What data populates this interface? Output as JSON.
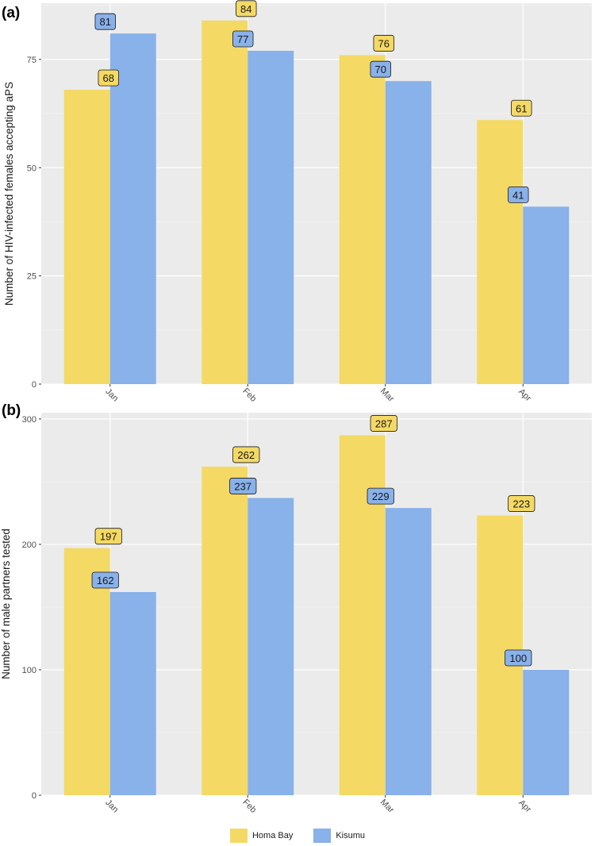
{
  "chart_data": [
    {
      "type": "bar",
      "panel_label": "(a)",
      "ylabel": "Number of HIV-infected females accepting aPS",
      "categories": [
        "Jan",
        "Feb",
        "Mar",
        "Apr"
      ],
      "ylim": [
        0,
        88
      ],
      "yticks": [
        "0",
        "25",
        "50",
        "75"
      ],
      "series": [
        {
          "name": "Homa Bay",
          "values": [
            68,
            84,
            76,
            61
          ],
          "color": "#F4D964"
        },
        {
          "name": "Kisumu",
          "values": [
            81,
            77,
            70,
            41
          ],
          "color": "#89B1EA"
        }
      ],
      "grid": true
    },
    {
      "type": "bar",
      "panel_label": "(b)",
      "ylabel": "Number of male partners tested",
      "categories": [
        "Jan",
        "Feb",
        "Mar",
        "Apr"
      ],
      "ylim": [
        0,
        305
      ],
      "yticks": [
        "0",
        "100",
        "200",
        "300"
      ],
      "series": [
        {
          "name": "Homa Bay",
          "values": [
            197,
            262,
            287,
            223
          ],
          "color": "#F4D964"
        },
        {
          "name": "Kisumu",
          "values": [
            162,
            237,
            229,
            100
          ],
          "color": "#89B1EA"
        }
      ],
      "grid": true
    }
  ],
  "legend": {
    "placement": "bottom",
    "items": [
      {
        "label": "Homa Bay",
        "color": "#F4D964"
      },
      {
        "label": "Kisumu",
        "color": "#89B1EA"
      }
    ]
  },
  "colors": {
    "panel_background": "#EBEBEB",
    "grid_major": "#FFFFFF",
    "homa_bay": "#F4D964",
    "kisumu": "#89B1EA"
  }
}
